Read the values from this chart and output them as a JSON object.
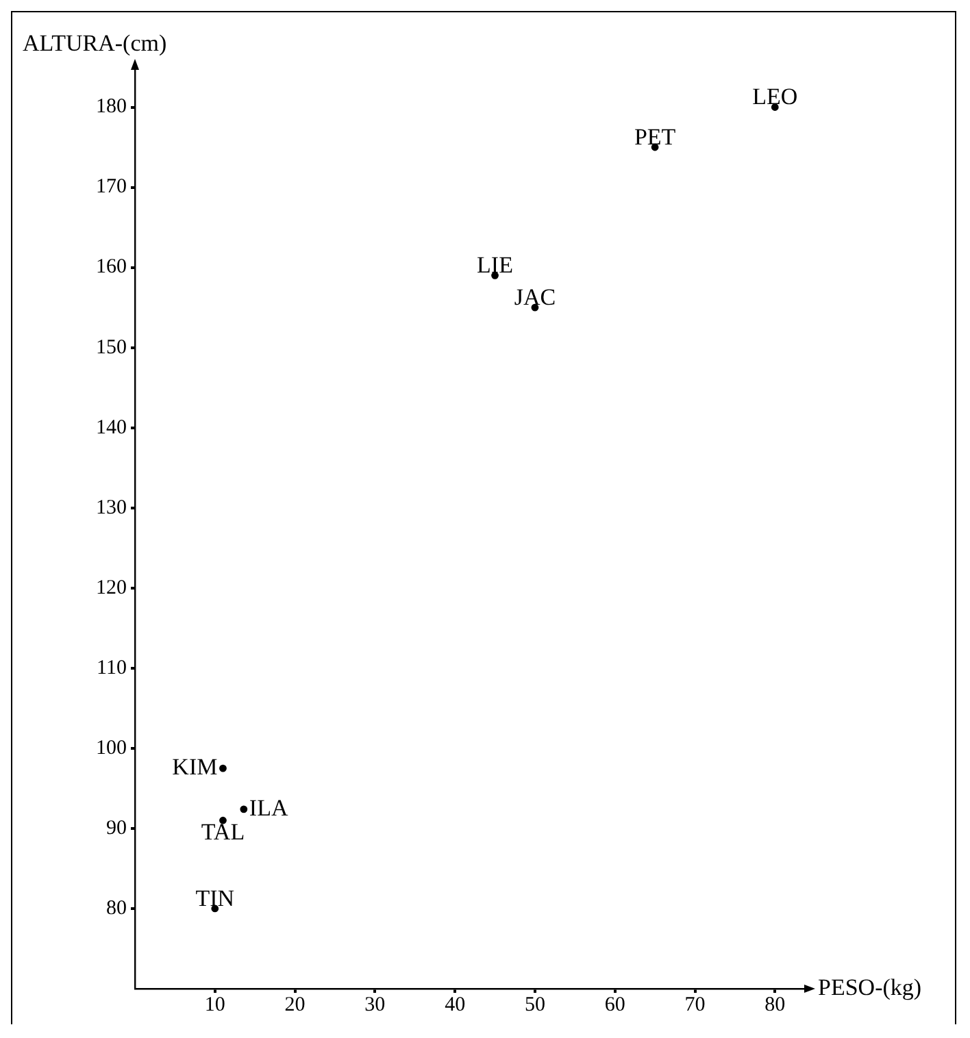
{
  "chart_data": {
    "type": "scatter",
    "xlabel": "PESO-(kg)",
    "ylabel": "ALTURA-(cm)",
    "x": [
      80,
      65,
      45,
      50,
      11,
      13.6,
      11,
      10
    ],
    "series": [
      {
        "color": "#000000",
        "values": [
          180,
          175,
          159,
          155,
          97.5,
          92.4,
          91,
          80
        ]
      }
    ],
    "annotations": [
      {
        "text": "LEO",
        "x": 80,
        "y": 180
      },
      {
        "text": "PET",
        "x": 65,
        "y": 175
      },
      {
        "text": "LIE",
        "x": 45,
        "y": 159
      },
      {
        "text": "JAC",
        "x": 50,
        "y": 155
      },
      {
        "text": "KIM",
        "x": 11,
        "y": 97.5
      },
      {
        "text": "ILA",
        "x": 13.6,
        "y": 92.4
      },
      {
        "text": "TAL",
        "x": 11,
        "y": 91
      },
      {
        "text": "TIN",
        "x": 10,
        "y": 80
      }
    ],
    "xlim": [
      0,
      84
    ],
    "ylim": [
      70,
      185
    ],
    "xticks": [
      10,
      20,
      30,
      40,
      50,
      60,
      70,
      80
    ],
    "yticks": [
      80,
      90,
      100,
      110,
      120,
      130,
      140,
      150,
      160,
      170,
      180
    ],
    "grid": false,
    "legend": false,
    "marker": "circle"
  }
}
